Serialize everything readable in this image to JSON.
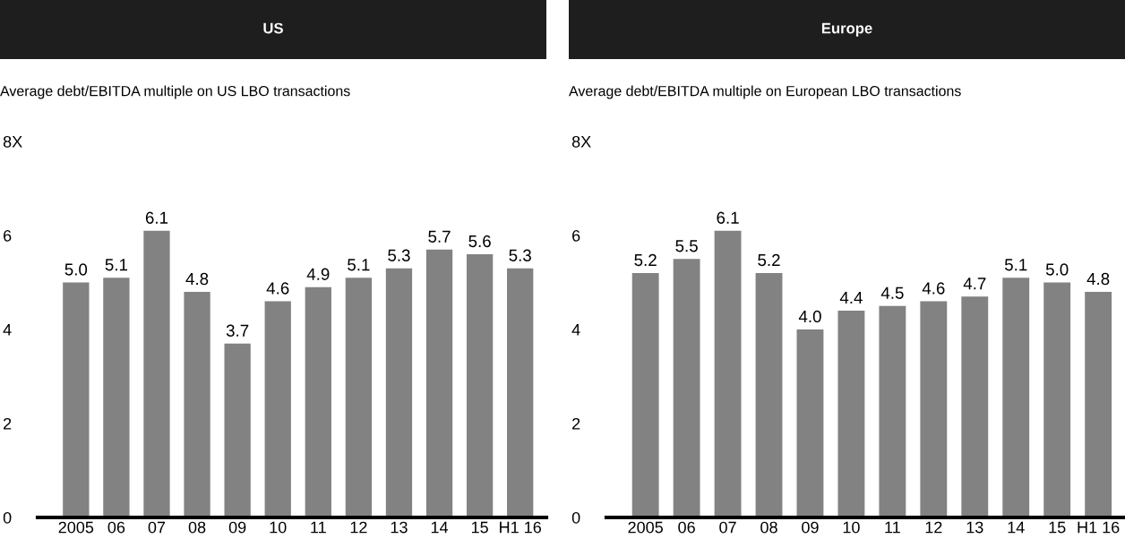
{
  "chart_data": [
    {
      "type": "bar",
      "title": "US",
      "subtitle": "Average debt/EBITDA multiple on US LBO transactions",
      "categories": [
        "2005",
        "06",
        "07",
        "08",
        "09",
        "10",
        "11",
        "12",
        "13",
        "14",
        "15",
        "H1 16"
      ],
      "values": [
        5.0,
        5.1,
        6.1,
        4.8,
        3.7,
        4.6,
        4.9,
        5.1,
        5.3,
        5.7,
        5.6,
        5.3
      ],
      "value_labels": [
        "5.0",
        "5.1",
        "6.1",
        "4.8",
        "3.7",
        "4.6",
        "4.9",
        "5.1",
        "5.3",
        "5.7",
        "5.6",
        "5.3"
      ],
      "color": "#828282",
      "ylim": [
        0,
        8
      ],
      "yticks": [
        0,
        2,
        4,
        6,
        {
          "value": 8,
          "label": "8X"
        }
      ],
      "grid": false
    },
    {
      "type": "bar",
      "title": "Europe",
      "subtitle": "Average debt/EBITDA multiple on European LBO transactions",
      "categories": [
        "2005",
        "06",
        "07",
        "08",
        "09",
        "10",
        "11",
        "12",
        "13",
        "14",
        "15",
        "H1 16"
      ],
      "values": [
        5.2,
        5.5,
        6.1,
        5.2,
        4.0,
        4.4,
        4.5,
        4.6,
        4.7,
        5.1,
        5.0,
        4.8
      ],
      "value_labels": [
        "5.2",
        "5.5",
        "6.1",
        "5.2",
        "4.0",
        "4.4",
        "4.5",
        "4.6",
        "4.7",
        "5.1",
        "5.0",
        "4.8"
      ],
      "color": "#828282",
      "ylim": [
        0,
        8
      ],
      "yticks": [
        0,
        2,
        4,
        6,
        {
          "value": 8,
          "label": "8X"
        }
      ],
      "grid": false
    }
  ]
}
